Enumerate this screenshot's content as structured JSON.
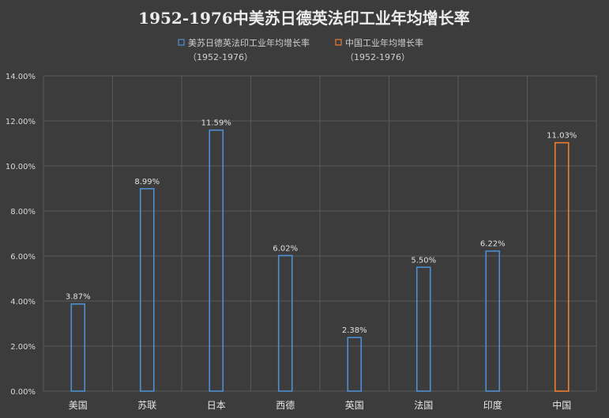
{
  "chart_data": {
    "type": "bar",
    "title": "1952-1976中美苏日德英法印工业年均增长率",
    "categories": [
      "美国",
      "苏联",
      "日本",
      "西德",
      "英国",
      "法国",
      "印度",
      "中国"
    ],
    "series": [
      {
        "name": "美苏日德英法印工业年均增长率（1952-1976）",
        "legend_lines": [
          "美苏日德英法印工业年均增长率",
          "（1952-1976）"
        ],
        "color": "#4e8fd1",
        "values": [
          3.87,
          8.99,
          11.59,
          6.02,
          2.38,
          5.5,
          6.22,
          null
        ],
        "labels": [
          "3.87%",
          "8.99%",
          "11.59%",
          "6.02%",
          "2.38%",
          "5.50%",
          "6.22%",
          ""
        ]
      },
      {
        "name": "中国工业年均增长率（1952-1976）",
        "legend_lines": [
          "中国工业年均增长率",
          "（1952-1976）"
        ],
        "color": "#ed7d31",
        "values": [
          null,
          null,
          null,
          null,
          null,
          null,
          null,
          11.03
        ],
        "labels": [
          "",
          "",
          "",
          "",
          "",
          "",
          "",
          "11.03%"
        ]
      }
    ],
    "ylim": [
      0,
      14
    ],
    "yticks": [
      0,
      2,
      4,
      6,
      8,
      10,
      12,
      14
    ],
    "ytick_labels": [
      "0.00%",
      "2.00%",
      "4.00%",
      "6.00%",
      "8.00%",
      "10.00%",
      "12.00%",
      "14.00%"
    ],
    "grid": true,
    "legend_position": "top-center",
    "colors": {
      "background": "#3c3c3c",
      "grid": "#5a5a5a"
    }
  }
}
